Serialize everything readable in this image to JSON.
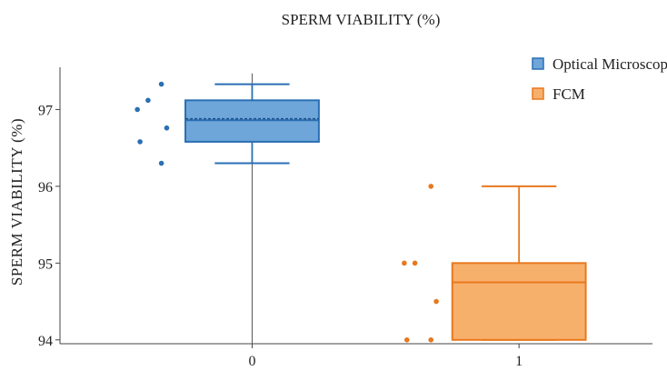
{
  "chart_data": {
    "type": "box",
    "title": "SPERM VIABILITY (%)",
    "xlabel": "",
    "ylabel": "SPERM VIABILITY (%)",
    "ylim": [
      93.95,
      97.55
    ],
    "yticks": [
      94,
      95,
      96,
      97
    ],
    "xlim": [
      -0.72,
      1.5
    ],
    "xticks": [
      0,
      1
    ],
    "legend": "top-right",
    "grid": false,
    "series": [
      {
        "name": "Optical Microscopy",
        "x": 0,
        "color": "#2a6fb4",
        "fill": "#6fa6d9",
        "box": {
          "whisker_low": 96.3,
          "q1": 96.58,
          "median": 96.86,
          "mean": 96.88,
          "q3": 97.12,
          "whisker_high": 97.33
        },
        "points": [
          {
            "x": -0.43,
            "y": 97.0
          },
          {
            "x": -0.39,
            "y": 97.12
          },
          {
            "x": -0.34,
            "y": 97.33
          },
          {
            "x": -0.42,
            "y": 96.58
          },
          {
            "x": -0.32,
            "y": 96.76
          },
          {
            "x": -0.34,
            "y": 96.3
          }
        ]
      },
      {
        "name": "FCM",
        "x": 1,
        "color": "#e8781e",
        "fill": "#f7b06c",
        "box": {
          "whisker_low": 94.0,
          "q1": 94.0,
          "median": 94.75,
          "mean": null,
          "q3": 95.0,
          "whisker_high": 96.0
        },
        "points": [
          {
            "x": 0.67,
            "y": 96.0
          },
          {
            "x": 0.57,
            "y": 95.0
          },
          {
            "x": 0.61,
            "y": 95.0
          },
          {
            "x": 0.69,
            "y": 94.5
          },
          {
            "x": 0.58,
            "y": 94.0
          },
          {
            "x": 0.67,
            "y": 94.0
          }
        ]
      }
    ]
  }
}
